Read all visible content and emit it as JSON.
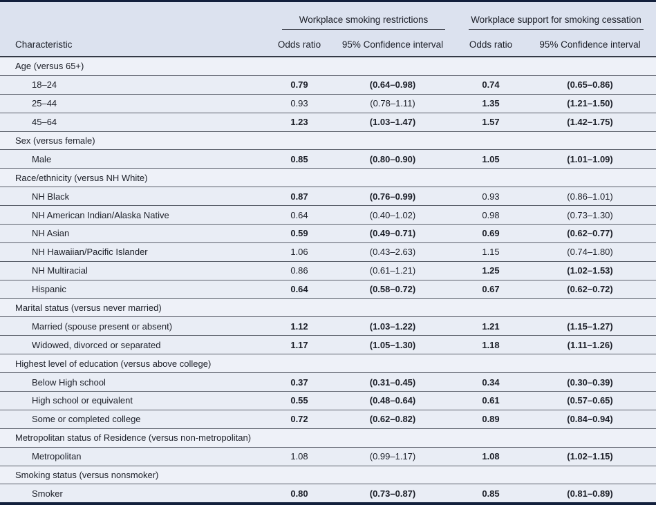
{
  "colors": {
    "frame": "#13203c",
    "header_bg": "#dce2ef",
    "row_bg": "#e9edf5",
    "section_bg": "#eef1f8",
    "row_line": "#585d68",
    "header_line": "#343946",
    "spanner_line": "#2a2e38",
    "text": "#1b1e27"
  },
  "table": {
    "col_groups": [
      {
        "label": "Workplace smoking restrictions"
      },
      {
        "label": "Workplace support for smoking cessation"
      }
    ],
    "columns": {
      "characteristic": "Characteristic",
      "odds_ratio": "Odds ratio",
      "ci": "95% Confidence interval"
    },
    "rows": [
      {
        "type": "section",
        "label": "Age (versus 65+)"
      },
      {
        "type": "data",
        "label": "18–24",
        "or1": "0.79",
        "ci1": "(0.64–0.98)",
        "sig1": true,
        "or2": "0.74",
        "ci2": "(0.65–0.86)",
        "sig2": true
      },
      {
        "type": "data",
        "label": "25–44",
        "or1": "0.93",
        "ci1": "(0.78–1.11)",
        "sig1": false,
        "or2": "1.35",
        "ci2": "(1.21–1.50)",
        "sig2": true
      },
      {
        "type": "data",
        "label": "45–64",
        "or1": "1.23",
        "ci1": "(1.03–1.47)",
        "sig1": true,
        "or2": "1.57",
        "ci2": "(1.42–1.75)",
        "sig2": true
      },
      {
        "type": "section",
        "label": "Sex (versus female)"
      },
      {
        "type": "data",
        "label": "Male",
        "or1": "0.85",
        "ci1": "(0.80–0.90)",
        "sig1": true,
        "or2": "1.05",
        "ci2": "(1.01–1.09)",
        "sig2": true
      },
      {
        "type": "section",
        "label": "Race/ethnicity (versus NH White)"
      },
      {
        "type": "data",
        "label": "NH Black",
        "or1": "0.87",
        "ci1": "(0.76–0.99)",
        "sig1": true,
        "or2": "0.93",
        "ci2": "(0.86–1.01)",
        "sig2": false
      },
      {
        "type": "data",
        "label": "NH American Indian/Alaska Native",
        "or1": "0.64",
        "ci1": "(0.40–1.02)",
        "sig1": false,
        "or2": "0.98",
        "ci2": "(0.73–1.30)",
        "sig2": false
      },
      {
        "type": "data",
        "label": "NH Asian",
        "or1": "0.59",
        "ci1": "(0.49–0.71)",
        "sig1": true,
        "or2": "0.69",
        "ci2": "(0.62–0.77)",
        "sig2": true
      },
      {
        "type": "data",
        "label": "NH Hawaiian/Pacific Islander",
        "or1": "1.06",
        "ci1": "(0.43–2.63)",
        "sig1": false,
        "or2": "1.15",
        "ci2": "(0.74–1.80)",
        "sig2": false
      },
      {
        "type": "data",
        "label": "NH Multiracial",
        "or1": "0.86",
        "ci1": "(0.61–1.21)",
        "sig1": false,
        "or2": "1.25",
        "ci2": "(1.02–1.53)",
        "sig2": true
      },
      {
        "type": "data",
        "label": "Hispanic",
        "or1": "0.64",
        "ci1": "(0.58–0.72)",
        "sig1": true,
        "or2": "0.67",
        "ci2": "(0.62–0.72)",
        "sig2": true
      },
      {
        "type": "section",
        "label": "Marital status (versus never married)"
      },
      {
        "type": "data",
        "label": "Married (spouse present or absent)",
        "or1": "1.12",
        "ci1": "(1.03–1.22)",
        "sig1": true,
        "or2": "1.21",
        "ci2": "(1.15–1.27)",
        "sig2": true
      },
      {
        "type": "data",
        "label": "Widowed, divorced or separated",
        "or1": "1.17",
        "ci1": "(1.05–1.30)",
        "sig1": true,
        "or2": "1.18",
        "ci2": "(1.11–1.26)",
        "sig2": true
      },
      {
        "type": "section",
        "label": "Highest level of education (versus above college)"
      },
      {
        "type": "data",
        "label": "Below High school",
        "or1": "0.37",
        "ci1": "(0.31–0.45)",
        "sig1": true,
        "or2": "0.34",
        "ci2": "(0.30–0.39)",
        "sig2": true
      },
      {
        "type": "data",
        "label": "High school or equivalent",
        "or1": "0.55",
        "ci1": "(0.48–0.64)",
        "sig1": true,
        "or2": "0.61",
        "ci2": "(0.57–0.65)",
        "sig2": true
      },
      {
        "type": "data",
        "label": "Some or completed college",
        "or1": "0.72",
        "ci1": "(0.62–0.82)",
        "sig1": true,
        "or2": "0.89",
        "ci2": "(0.84–0.94)",
        "sig2": true
      },
      {
        "type": "section",
        "label": "Metropolitan status of Residence (versus non-metropolitan)"
      },
      {
        "type": "data",
        "label": "Metropolitan",
        "or1": "1.08",
        "ci1": "(0.99–1.17)",
        "sig1": false,
        "or2": "1.08",
        "ci2": "(1.02–1.15)",
        "sig2": true
      },
      {
        "type": "section",
        "label": "Smoking status (versus nonsmoker)"
      },
      {
        "type": "data",
        "label": "Smoker",
        "or1": "0.80",
        "ci1": "(0.73–0.87)",
        "sig1": true,
        "or2": "0.85",
        "ci2": "(0.81–0.89)",
        "sig2": true
      }
    ]
  }
}
